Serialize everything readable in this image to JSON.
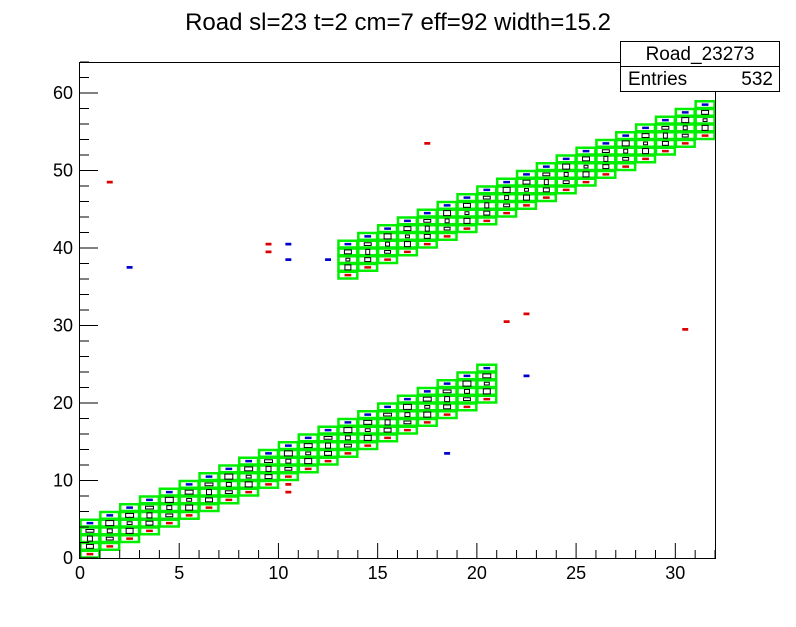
{
  "chart_data": {
    "type": "heatmap",
    "title": "Road sl=23 t=2 cm=7 eff=92 width=15.2",
    "xlabel": "",
    "ylabel": "",
    "xlim": [
      0,
      32
    ],
    "ylim": [
      0,
      64
    ],
    "x_ticks": [
      "0",
      "5",
      "10",
      "15",
      "20",
      "25",
      "30"
    ],
    "y_ticks": [
      "0",
      "10",
      "20",
      "30",
      "40",
      "50",
      "60"
    ],
    "stats": {
      "name": "Road_23273",
      "entries_label": "Entries",
      "entries_value": "532"
    },
    "colors": {
      "road": "#00ee00",
      "hit": "#000000",
      "blue": "#0000cc",
      "red": "#dd0000",
      "axis": "#000000"
    },
    "road_bands": [
      {
        "x_start": 0,
        "x_end": 21,
        "bottom_start": 0,
        "slope": 1,
        "height": 5
      },
      {
        "x_start": 13,
        "x_end": 32,
        "bottom_start": 36,
        "slope": 1,
        "height": 5
      }
    ],
    "stray_hits": [
      {
        "x": 1.5,
        "y": 48.5,
        "color": "red"
      },
      {
        "x": 2.5,
        "y": 37.5,
        "color": "blue"
      },
      {
        "x": 9.5,
        "y": 40.5,
        "color": "red"
      },
      {
        "x": 9.5,
        "y": 39.5,
        "color": "red"
      },
      {
        "x": 10.5,
        "y": 40.5,
        "color": "blue"
      },
      {
        "x": 10.5,
        "y": 38.5,
        "color": "blue"
      },
      {
        "x": 10.5,
        "y": 9.5,
        "color": "red"
      },
      {
        "x": 10.5,
        "y": 8.5,
        "color": "red"
      },
      {
        "x": 12.5,
        "y": 38.5,
        "color": "blue"
      },
      {
        "x": 17.5,
        "y": 53.5,
        "color": "red"
      },
      {
        "x": 18.5,
        "y": 13.5,
        "color": "blue"
      },
      {
        "x": 21.5,
        "y": 30.5,
        "color": "red"
      },
      {
        "x": 22.5,
        "y": 31.5,
        "color": "red"
      },
      {
        "x": 22.5,
        "y": 23.5,
        "color": "blue"
      },
      {
        "x": 30.5,
        "y": 29.5,
        "color": "red"
      }
    ]
  }
}
